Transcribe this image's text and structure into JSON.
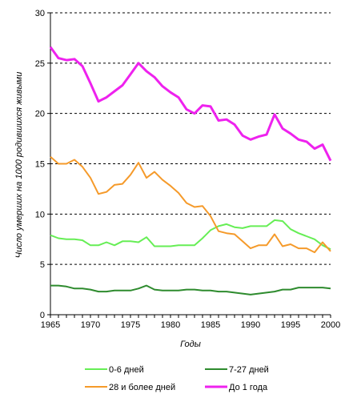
{
  "chart_data": {
    "type": "line",
    "title": "",
    "xlabel": "Годы",
    "ylabel": "Число умерших на 1000 родившихся живыми",
    "xlim": [
      1965,
      2000
    ],
    "ylim": [
      0,
      30
    ],
    "x_ticks": [
      "1965",
      "1970",
      "1975",
      "1980",
      "1985",
      "1990",
      "1995",
      "2000"
    ],
    "y_ticks": [
      "0",
      "5",
      "10",
      "15",
      "20",
      "25",
      "30"
    ],
    "grid": "horizontal dashed",
    "legend_position": "bottom",
    "x": [
      1965,
      1966,
      1967,
      1968,
      1969,
      1970,
      1971,
      1972,
      1973,
      1974,
      1975,
      1976,
      1977,
      1978,
      1979,
      1980,
      1981,
      1982,
      1983,
      1984,
      1985,
      1986,
      1987,
      1988,
      1989,
      1990,
      1991,
      1992,
      1993,
      1994,
      1995,
      1996,
      1997,
      1998,
      1999,
      2000
    ],
    "series": [
      {
        "name": "0-6 дней",
        "color": "#66ee55",
        "values": [
          7.9,
          7.6,
          7.5,
          7.5,
          7.4,
          6.9,
          6.9,
          7.2,
          6.9,
          7.3,
          7.3,
          7.2,
          7.7,
          6.8,
          6.8,
          6.8,
          6.9,
          6.9,
          6.9,
          7.6,
          8.4,
          8.8,
          9.0,
          8.7,
          8.6,
          8.8,
          8.8,
          8.8,
          9.4,
          9.3,
          8.5,
          8.1,
          7.8,
          7.5,
          6.9,
          6.5
        ]
      },
      {
        "name": "7-27 дней",
        "color": "#2e8b2e",
        "values": [
          2.9,
          2.9,
          2.8,
          2.6,
          2.6,
          2.5,
          2.3,
          2.3,
          2.4,
          2.4,
          2.4,
          2.6,
          2.9,
          2.5,
          2.4,
          2.4,
          2.4,
          2.5,
          2.5,
          2.4,
          2.4,
          2.3,
          2.3,
          2.2,
          2.1,
          2.0,
          2.1,
          2.2,
          2.3,
          2.5,
          2.5,
          2.7,
          2.7,
          2.7,
          2.7,
          2.6
        ]
      },
      {
        "name": "28 и более дней",
        "color": "#f59a2a",
        "values": [
          15.7,
          15.0,
          15.0,
          15.4,
          14.7,
          13.6,
          12.0,
          12.2,
          12.9,
          13.0,
          13.9,
          15.1,
          13.6,
          14.2,
          13.4,
          12.8,
          12.1,
          11.1,
          10.7,
          10.8,
          9.8,
          8.3,
          8.1,
          8.0,
          7.3,
          6.6,
          6.9,
          6.9,
          8.0,
          6.8,
          7.0,
          6.6,
          6.6,
          6.2,
          7.2,
          6.3
        ]
      },
      {
        "name": "До 1 года",
        "color": "#ee22ee",
        "values": [
          26.6,
          25.5,
          25.3,
          25.4,
          24.7,
          23.0,
          21.2,
          21.6,
          22.2,
          22.8,
          23.9,
          25.0,
          24.2,
          23.6,
          22.7,
          22.1,
          21.6,
          20.4,
          20.0,
          20.8,
          20.7,
          19.3,
          19.4,
          18.9,
          17.8,
          17.4,
          17.7,
          17.9,
          19.9,
          18.5,
          18.0,
          17.4,
          17.2,
          16.5,
          16.9,
          15.3
        ]
      }
    ]
  }
}
